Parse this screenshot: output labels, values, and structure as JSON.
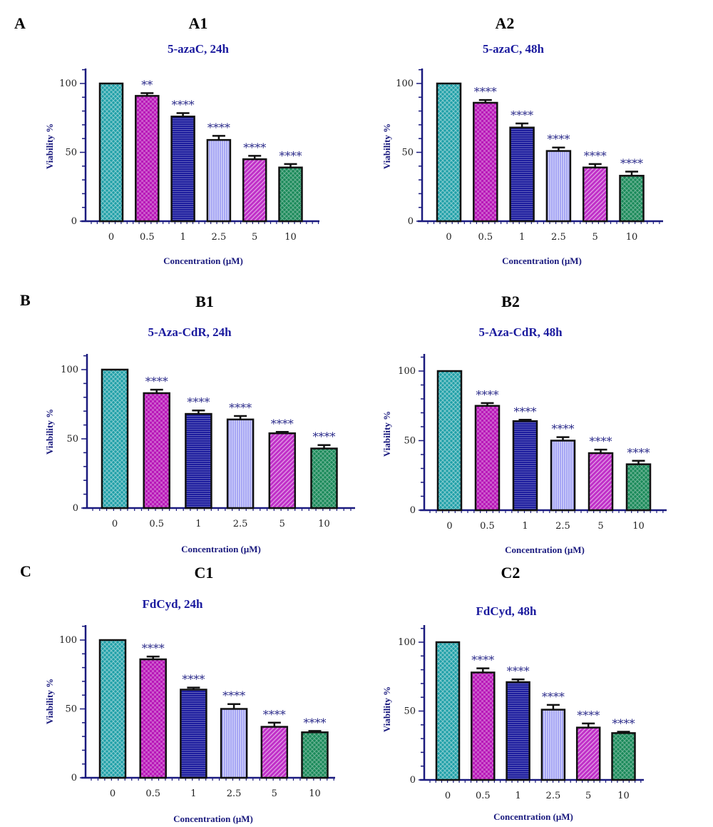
{
  "row_labels": [
    "A",
    "B",
    "C"
  ],
  "colors": {
    "axis": "#1a1a7e",
    "title": "#1a1a9e",
    "sig": "#2b2b8a",
    "bar_outline": "#111111",
    "bars": [
      "#20a0a8",
      "#b818b8",
      "#1c1c9e",
      "#a6a6f4",
      "#c030c8",
      "#1b8a5a"
    ]
  },
  "patterns": [
    "crosshatch",
    "checker",
    "horizontal-lines",
    "vertical-lines",
    "diagonal-lines",
    "diagonal-cross"
  ],
  "chart_data": [
    {
      "type": "bar",
      "panel": "A1",
      "title": "5-azaC, 24h",
      "xlabel": "Concentration (μM)",
      "ylabel": "Viability %",
      "categories": [
        "0",
        "0.5",
        "1",
        "2.5",
        "5",
        "10"
      ],
      "values": [
        100,
        91,
        76,
        59,
        45,
        39
      ],
      "errors": [
        0,
        2,
        2.5,
        3,
        2.5,
        2.5
      ],
      "significance": [
        "",
        "**",
        "****",
        "****",
        "****",
        "****"
      ],
      "yticks": [
        0,
        50,
        100
      ],
      "ylim": [
        0,
        110
      ]
    },
    {
      "type": "bar",
      "panel": "A2",
      "title": "5-azaC, 48h",
      "xlabel": "Concentration (μM)",
      "ylabel": "Viability %",
      "categories": [
        "0",
        "0.5",
        "1",
        "2.5",
        "5",
        "10"
      ],
      "values": [
        100,
        86,
        68,
        51,
        39,
        33
      ],
      "errors": [
        0,
        2,
        3,
        2.5,
        2.5,
        3
      ],
      "significance": [
        "",
        "****",
        "****",
        "****",
        "****",
        "****"
      ],
      "yticks": [
        0,
        50,
        100
      ],
      "ylim": [
        0,
        110
      ]
    },
    {
      "type": "bar",
      "panel": "B1",
      "title": "5-Aza-CdR, 24h",
      "xlabel": "Concentration (μM)",
      "ylabel": "Viability %",
      "categories": [
        "0",
        "0.5",
        "1",
        "2.5",
        "5",
        "10"
      ],
      "values": [
        100,
        83,
        68,
        64,
        54,
        43
      ],
      "errors": [
        0,
        2.5,
        2.5,
        2.5,
        1,
        2.5
      ],
      "significance": [
        "",
        "****",
        "****",
        "****",
        "****",
        "****"
      ],
      "yticks": [
        0,
        50,
        100
      ],
      "ylim": [
        0,
        110
      ]
    },
    {
      "type": "bar",
      "panel": "B2",
      "title": "5-Aza-CdR, 48h",
      "xlabel": "Concentration (μM)",
      "ylabel": "Viability %",
      "categories": [
        "0",
        "0.5",
        "1",
        "2.5",
        "5",
        "10"
      ],
      "values": [
        100,
        75,
        64,
        50,
        41,
        33
      ],
      "errors": [
        0,
        2,
        1,
        2.5,
        2.5,
        2.5
      ],
      "significance": [
        "",
        "****",
        "****",
        "****",
        "****",
        "****"
      ],
      "yticks": [
        0,
        50,
        100
      ],
      "ylim": [
        0,
        110
      ]
    },
    {
      "type": "bar",
      "panel": "C1",
      "title": "FdCyd, 24h",
      "xlabel": "Concentration (μM)",
      "ylabel": "Viability %",
      "categories": [
        "0",
        "0.5",
        "1",
        "2.5",
        "5",
        "10"
      ],
      "values": [
        100,
        86,
        64,
        50,
        37,
        33
      ],
      "errors": [
        0,
        2,
        1.5,
        3.5,
        3,
        1
      ],
      "significance": [
        "",
        "****",
        "****",
        "****",
        "****",
        "****"
      ],
      "yticks": [
        0,
        50,
        100
      ],
      "ylim": [
        0,
        110
      ]
    },
    {
      "type": "bar",
      "panel": "C2",
      "title": "FdCyd, 48h",
      "xlabel": "Concentration (μM)",
      "ylabel": "Viability %",
      "categories": [
        "0",
        "0.5",
        "1",
        "2.5",
        "5",
        "10"
      ],
      "values": [
        100,
        78,
        71,
        51,
        38,
        34
      ],
      "errors": [
        0,
        3,
        2,
        3.5,
        3,
        1
      ],
      "significance": [
        "",
        "****",
        "****",
        "****",
        "****",
        "****"
      ],
      "yticks": [
        0,
        50,
        100
      ],
      "ylim": [
        0,
        110
      ]
    }
  ]
}
